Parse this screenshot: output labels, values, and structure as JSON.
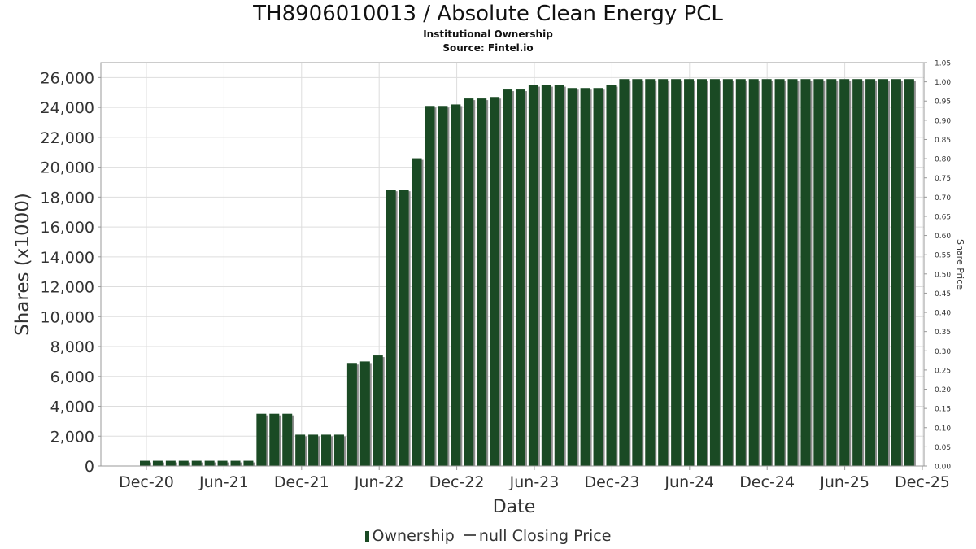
{
  "title": "TH8906010013 / Absolute Clean Energy PCL",
  "subtitle": "Institutional Ownership",
  "source": "Source: Fintel.io",
  "legend": {
    "ownership_label": "Ownership",
    "price_label": "null Closing Price"
  },
  "colors": {
    "bar": "#1a4a24",
    "bar_shadow": "#8e8e8e",
    "grid": "#dddddd"
  },
  "chart_data": {
    "type": "bar",
    "xlabel": "Date",
    "ylabel": "Shares (x1000)",
    "y2label": "Share Price",
    "ylim": [
      0,
      27000
    ],
    "y2lim": [
      0,
      1.05
    ],
    "grid": true,
    "legend_position": "bottom",
    "x_tick_labels": [
      "Dec-20",
      "Jun-21",
      "Dec-21",
      "Jun-22",
      "Dec-22",
      "Jun-23",
      "Dec-23",
      "Jun-24",
      "Dec-24",
      "Jun-25",
      "Dec-25"
    ],
    "y_tick_labels": [
      "0",
      "2,000",
      "4,000",
      "6,000",
      "8,000",
      "10,000",
      "12,000",
      "14,000",
      "16,000",
      "18,000",
      "20,000",
      "22,000",
      "24,000",
      "26,000"
    ],
    "y2_tick_labels": [
      "0.00",
      "0.05",
      "0.10",
      "0.15",
      "0.20",
      "0.25",
      "0.30",
      "0.35",
      "0.40",
      "0.45",
      "0.50",
      "0.55",
      "0.60",
      "0.65",
      "0.70",
      "0.75",
      "0.80",
      "0.85",
      "0.90",
      "0.95",
      "1.00",
      "1.05"
    ],
    "series": [
      {
        "name": "Ownership",
        "values": [
          350,
          350,
          350,
          350,
          350,
          350,
          350,
          350,
          350,
          3500,
          3500,
          3500,
          2100,
          2100,
          2100,
          2100,
          6900,
          7000,
          7400,
          18500,
          18500,
          20600,
          24100,
          24100,
          24200,
          24600,
          24600,
          24700,
          25200,
          25200,
          25500,
          25500,
          25500,
          25300,
          25300,
          25300,
          25500,
          25900,
          25900,
          25900,
          25900,
          25900,
          25900,
          25900,
          25900,
          25900,
          25900,
          25900,
          25900,
          25900,
          25900,
          25900,
          25900,
          25900,
          25900,
          25900,
          25900,
          25900,
          25900,
          25900
        ]
      }
    ]
  }
}
